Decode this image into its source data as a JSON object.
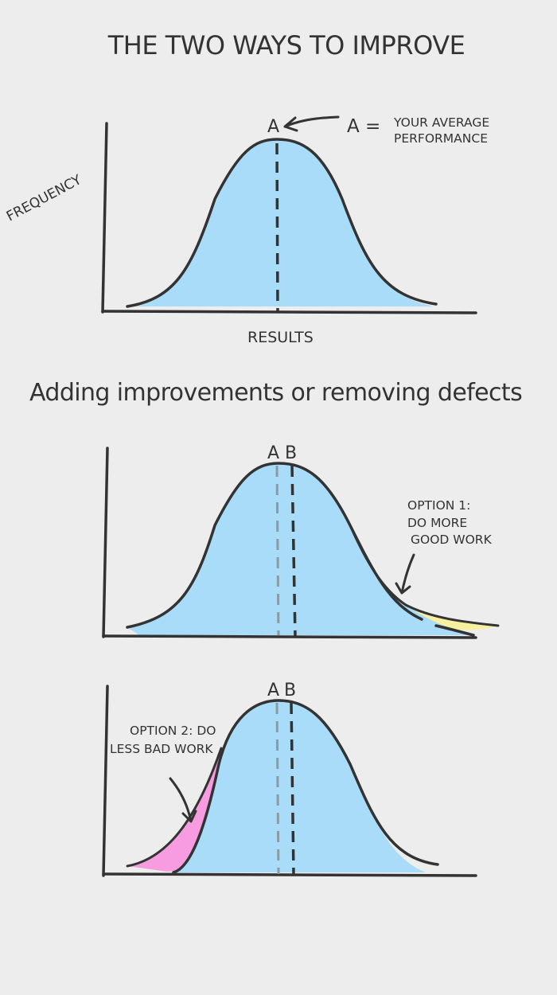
{
  "title": "THE TWO WAYS TO IMPROVE",
  "subtitle": "Adding improvements or removing defects",
  "top_chart": {
    "ylabel": "FREQUENCY",
    "xlabel": "RESULTS",
    "marker_a": "A",
    "legend_eq": "A =",
    "legend_line1": "YOUR AVERAGE",
    "legend_line2": "PERFORMANCE"
  },
  "option1_chart": {
    "marker_a": "A",
    "marker_b": "B",
    "note_line1": "OPTION 1:",
    "note_line2": "DO MORE",
    "note_line3": "GOOD WORK"
  },
  "option2_chart": {
    "marker_a": "A",
    "marker_b": "B",
    "note_line1": "OPTION 2: DO",
    "note_line2": "LESS BAD WORK"
  },
  "colors": {
    "background": "#ededed",
    "curve_fill": "#a8dcf8",
    "outline": "#333333",
    "improvement_fill": "#f7f0a0",
    "defect_fill": "#f79ce0",
    "old_mean_line": "#8a9aa6"
  }
}
